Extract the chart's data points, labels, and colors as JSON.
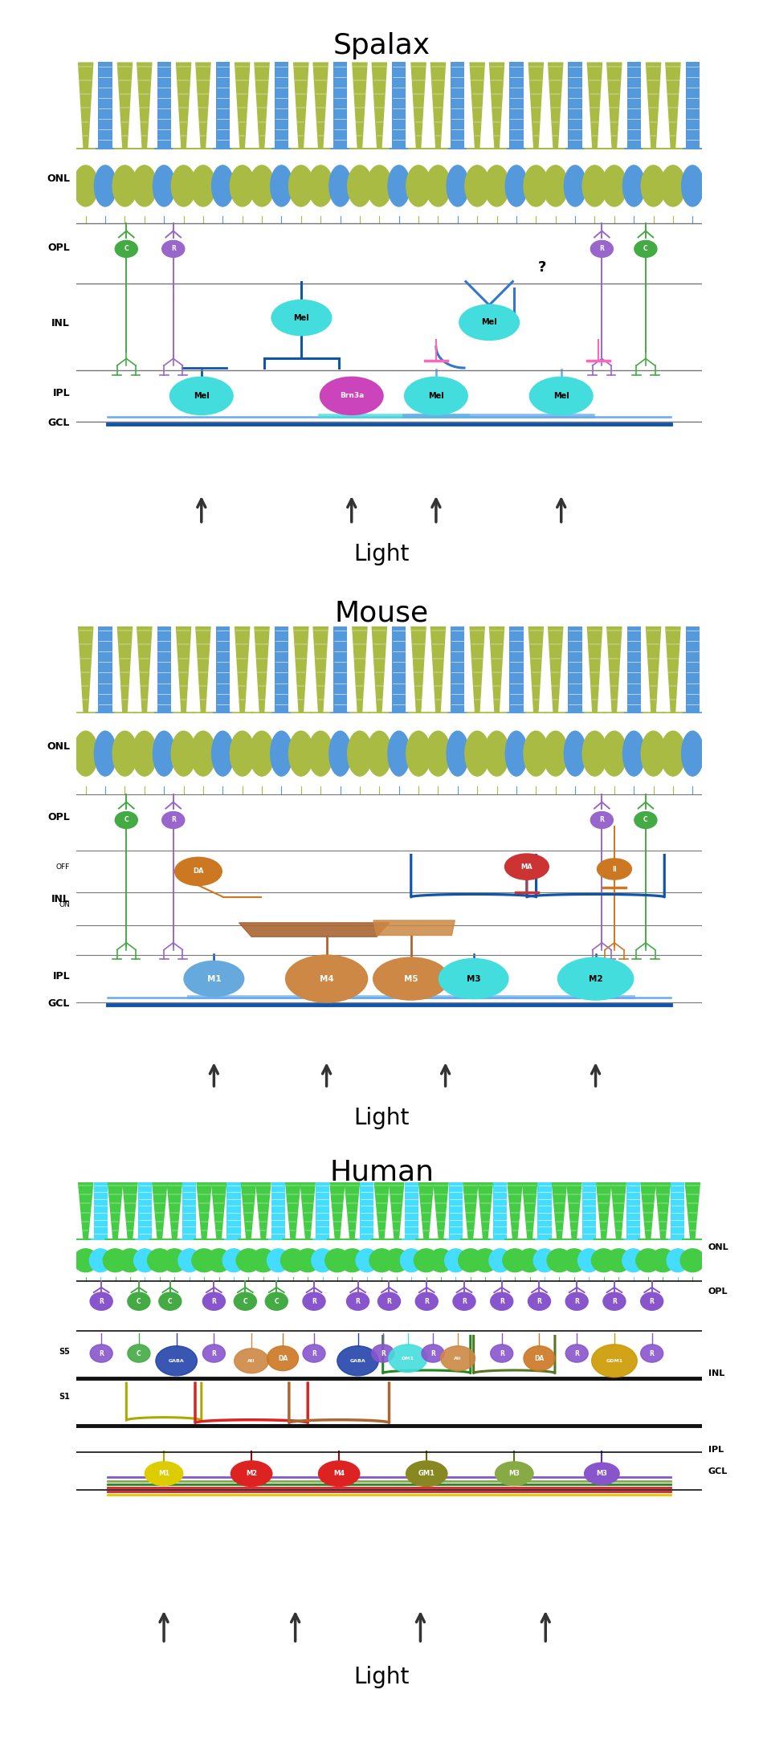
{
  "title_spalax": "Spalax",
  "title_mouse": "Mouse",
  "title_human": "Human",
  "light_label": "Light",
  "colors": {
    "background": "#ffffff",
    "rod_blue": "#5599dd",
    "cone_green": "#aabb44",
    "mel_cyan": "#44dddd",
    "mel_dark": "#1a9aaa",
    "brn3a_magenta": "#cc44bb",
    "pink_cell": "#ff66bb",
    "purple_cell": "#9966cc",
    "green_cell": "#44aa44",
    "orange_cell": "#cc7722",
    "brown_cell": "#aa6633",
    "brown2_cell": "#cc8844",
    "layer_line": "#888888",
    "axon_dark_blue": "#1155aa",
    "axon_mid_blue": "#3377cc",
    "axon_light_blue": "#66aaee",
    "cyan_rod_human": "#44ddff",
    "green_cone_human": "#44cc44",
    "purple_h": "#8855cc",
    "red_cell": "#dd2222",
    "yellow_cell": "#ddcc00",
    "olive_cell": "#888822"
  }
}
